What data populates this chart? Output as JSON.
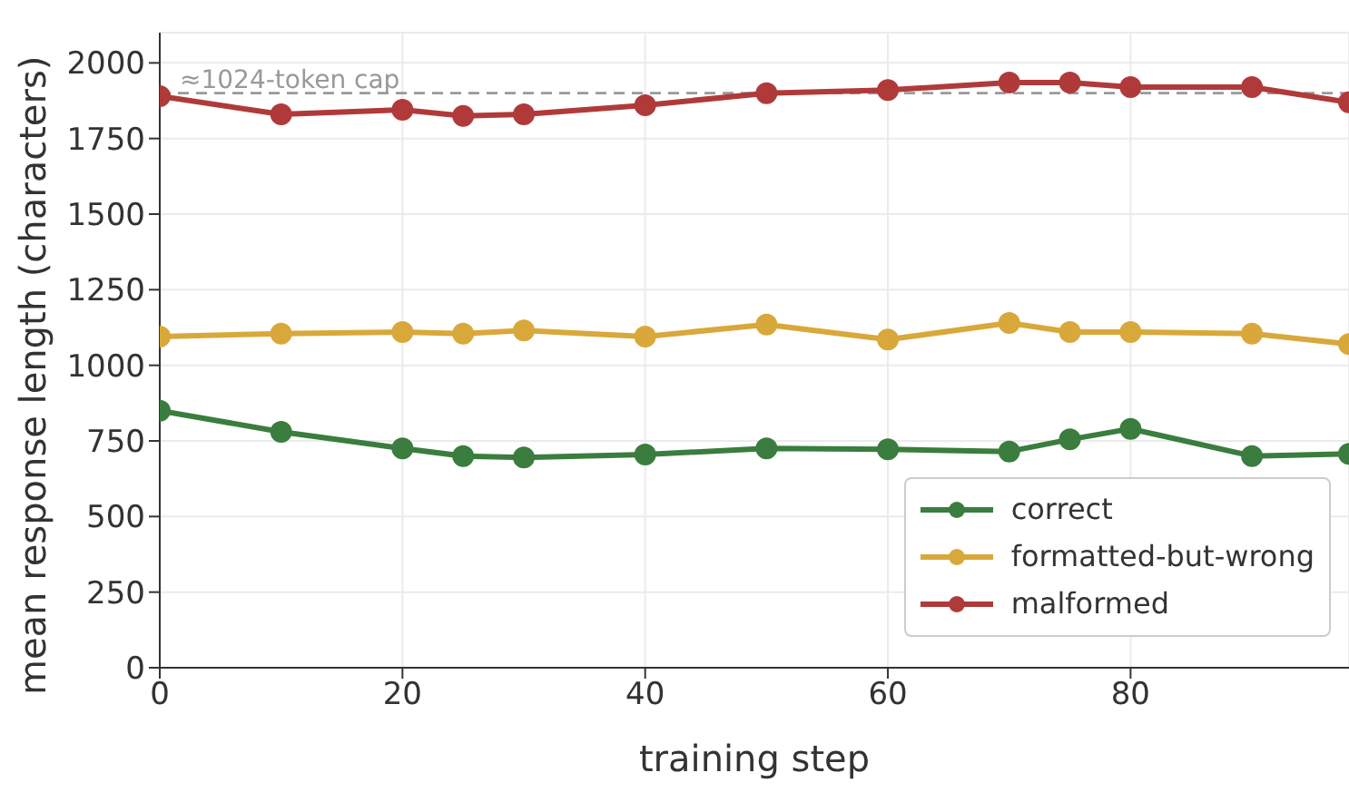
{
  "chart_data": {
    "type": "line",
    "xlabel": "training step",
    "ylabel": "mean response length (characters)",
    "x": [
      0,
      10,
      20,
      25,
      30,
      40,
      50,
      60,
      70,
      75,
      80,
      90,
      98
    ],
    "series": [
      {
        "name": "correct",
        "color": "#3a7d3e",
        "values": [
          850,
          780,
          725,
          700,
          695,
          705,
          725,
          722,
          715,
          755,
          790,
          700,
          707
        ]
      },
      {
        "name": "formatted-but-wrong",
        "color": "#d9a83a",
        "values": [
          1095,
          1105,
          1110,
          1105,
          1115,
          1095,
          1135,
          1085,
          1140,
          1110,
          1110,
          1105,
          1070
        ]
      },
      {
        "name": "malformed",
        "color": "#b03a3a",
        "values": [
          1890,
          1830,
          1845,
          1825,
          1830,
          1860,
          1900,
          1910,
          1935,
          1935,
          1920,
          1920,
          1870
        ]
      }
    ],
    "xlim": [
      0,
      98
    ],
    "xticks": [
      0,
      20,
      40,
      60,
      80
    ],
    "ylim": [
      0,
      2100
    ],
    "yticks": [
      0,
      250,
      500,
      750,
      1000,
      1250,
      1500,
      1750,
      2000
    ],
    "ref_lines": [
      {
        "axis": "y",
        "value": 1900,
        "label": "≈1024-token cap",
        "color": "#999999",
        "line_style": "dashed"
      }
    ],
    "grid": true,
    "legend": "right",
    "marker": "circle",
    "line_style": "solid"
  }
}
